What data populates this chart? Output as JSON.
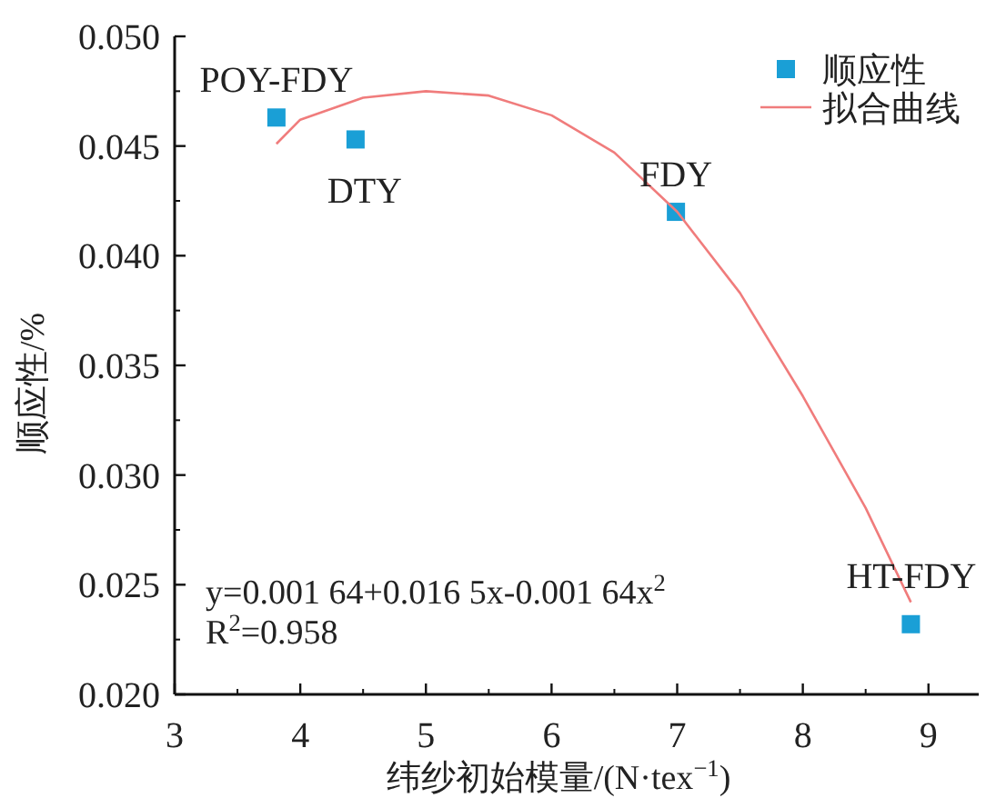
{
  "chart_data": {
    "type": "scatter",
    "xlabel": "纬纱初始模量/(N·tex$^{−1}$)",
    "ylabel": "顺应性/%",
    "xlim": [
      3,
      9.4
    ],
    "ylim": [
      0.02,
      0.05
    ],
    "xticks": [
      3,
      4,
      5,
      6,
      7,
      8,
      9
    ],
    "yticks": [
      {
        "value": 0.02,
        "label": "0.020"
      },
      {
        "value": 0.025,
        "label": "0.025"
      },
      {
        "value": 0.03,
        "label": "0.030"
      },
      {
        "value": 0.035,
        "label": "0.035"
      },
      {
        "value": 0.04,
        "label": "0.040"
      },
      {
        "value": 0.045,
        "label": "0.045"
      },
      {
        "value": 0.05,
        "label": "0.050"
      }
    ],
    "legend": "top right",
    "series": [
      {
        "name": "顺应性",
        "marker": "square",
        "color": "#1a9fd6",
        "x": [
          3.81,
          4.44,
          6.99,
          8.86
        ],
        "values": [
          0.0463,
          0.0453,
          0.042,
          0.0232
        ]
      },
      {
        "name": "拟合曲线",
        "type": "line",
        "color": "#f07c7c",
        "x": [
          3.81,
          4.0,
          4.5,
          5.0,
          5.5,
          6.0,
          6.5,
          7.0,
          7.5,
          8.0,
          8.5,
          8.86
        ],
        "values": [
          0.0451,
          0.0462,
          0.0472,
          0.0475,
          0.0473,
          0.0464,
          0.0447,
          0.042,
          0.0383,
          0.0336,
          0.0285,
          0.0242
        ]
      }
    ],
    "annotations": [
      {
        "text": "POY-FDY",
        "x": 3.81,
        "y": 0.0463
      },
      {
        "text": "DTY",
        "x": 4.44,
        "y": 0.0453
      },
      {
        "text": "FDY",
        "x": 6.99,
        "y": 0.042
      },
      {
        "text": "HT-FDY",
        "x": 8.86,
        "y": 0.0232
      },
      "y=0.001 64+0.016 5x-0.001 64x$^{2}$",
      "R$^{2}$=0.958"
    ]
  }
}
